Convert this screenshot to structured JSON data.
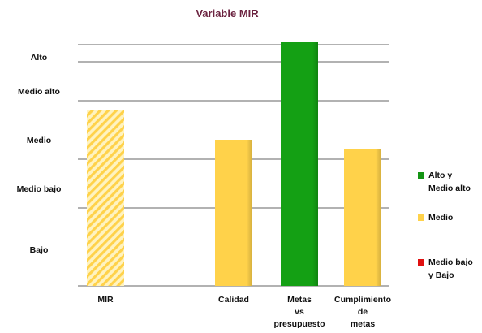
{
  "chart_data": {
    "type": "bar",
    "title": "Variable  MIR",
    "y_levels": [
      {
        "label": "Bajo",
        "value": 0.75
      },
      {
        "label": "Medio bajo",
        "value": 2.0
      },
      {
        "label": "Medio",
        "value": 3.0
      },
      {
        "label": "Medio  alto",
        "value": 4.0
      },
      {
        "label": "Alto",
        "value": 4.7
      }
    ],
    "grid_values": [
      0,
      1.6,
      2.6,
      3.8,
      4.6,
      4.95
    ],
    "ylim": [
      0,
      5
    ],
    "categories": [
      {
        "label_lines": [
          "MIR"
        ],
        "label": "MIR"
      },
      {
        "label_lines": [
          "Calidad"
        ],
        "label": "Calidad"
      },
      {
        "label_lines": [
          "Metas",
          "vs",
          "presupuesto"
        ],
        "label": "Metas vs presupuesto"
      },
      {
        "label_lines": [
          "Cumplimiento",
          "de",
          "metas"
        ],
        "label": "Cumplimiento de metas"
      }
    ],
    "values": [
      3.6,
      3.0,
      5.0,
      2.8
    ],
    "bar_fill": [
      "hatched-yellow",
      "yellow",
      "green",
      "yellow"
    ],
    "legend_position": "right",
    "legend": [
      {
        "label_lines": [
          "Alto y",
          "Medio alto"
        ],
        "label": "Alto y Medio alto",
        "color": "#149414"
      },
      {
        "label_lines": [
          "Medio"
        ],
        "label": "Medio",
        "color": "#FFD24A"
      },
      {
        "label_lines": [
          "Medio bajo",
          "y Bajo"
        ],
        "label": "Medio bajo y Bajo",
        "color": "#E01010"
      }
    ],
    "colors": {
      "yellow": "#FFD24A",
      "green": "#14A014",
      "hatch_light": "#FFF3C0",
      "title": "#6B2340"
    }
  }
}
